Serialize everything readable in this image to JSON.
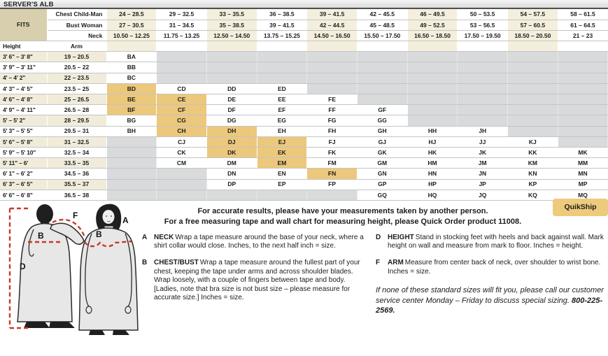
{
  "title": "SERVER'S ALB",
  "colors": {
    "highlight": "#ecc87c",
    "cream_column": "#f4efdd",
    "fits_khaki": "#d8cfae",
    "empty_gray": "#d9dadc",
    "quikship_bg": "#eeca7c",
    "accent_red": "#c9392b"
  },
  "table": {
    "fits_label": "FITS",
    "height_label": "Height",
    "arm_label": "Arm",
    "fit_rows": [
      {
        "label": "Chest Child-Man",
        "values": [
          "24 – 28.5",
          "29 – 32.5",
          "33 – 35.5",
          "36 – 38.5",
          "39 – 41.5",
          "42 – 45.5",
          "46 – 49.5",
          "50 – 53.5",
          "54 – 57.5",
          "58 – 61.5"
        ]
      },
      {
        "label": "Bust Woman",
        "values": [
          "27 – 30.5",
          "31 – 34.5",
          "35 – 38.5",
          "39 – 41.5",
          "42 – 44.5",
          "45 – 48.5",
          "49 – 52.5",
          "53 – 56.5",
          "57 – 60.5",
          "61 – 64.5"
        ]
      },
      {
        "label": "Neck",
        "values": [
          "10.50 – 12.25",
          "11.75 – 13.25",
          "12.50 – 14.50",
          "13.75 – 15.25",
          "14.50 – 16.50",
          "15.50 – 17.50",
          "16.50 – 18.50",
          "17.50 – 19.50",
          "18.50 – 20.50",
          "21 – 23"
        ]
      }
    ],
    "size_rows": [
      {
        "height": "3' 6\" – 3' 8\"",
        "arm": "19 – 20.5",
        "codes": [
          "BA",
          null,
          null,
          null,
          null,
          null,
          null,
          null,
          null,
          null
        ]
      },
      {
        "height": "3' 9\" – 3' 11\"",
        "arm": "20.5 – 22",
        "codes": [
          "BB",
          null,
          null,
          null,
          null,
          null,
          null,
          null,
          null,
          null
        ]
      },
      {
        "height": "4' – 4' 2\"",
        "arm": "22 – 23.5",
        "codes": [
          "BC",
          null,
          null,
          null,
          null,
          null,
          null,
          null,
          null,
          null
        ]
      },
      {
        "height": "4' 3\" – 4' 5\"",
        "arm": "23.5 – 25",
        "codes": [
          "BD",
          "CD",
          "DD",
          "ED",
          null,
          null,
          null,
          null,
          null,
          null
        ]
      },
      {
        "height": "4' 6\" – 4' 8\"",
        "arm": "25 – 26.5",
        "codes": [
          "BE",
          "CE",
          "DE",
          "EE",
          "FE",
          null,
          null,
          null,
          null,
          null
        ]
      },
      {
        "height": "4' 9\" – 4' 11\"",
        "arm": "26.5 – 28",
        "codes": [
          "BF",
          "CF",
          "DF",
          "EF",
          "FF",
          "GF",
          null,
          null,
          null,
          null
        ]
      },
      {
        "height": "5' – 5' 2\"",
        "arm": "28 – 29.5",
        "codes": [
          "BG",
          "CG",
          "DG",
          "EG",
          "FG",
          "GG",
          null,
          null,
          null,
          null
        ]
      },
      {
        "height": "5' 3\" – 5' 5\"",
        "arm": "29.5 – 31",
        "codes": [
          "BH",
          "CH",
          "DH",
          "EH",
          "FH",
          "GH",
          "HH",
          "JH",
          null,
          null
        ]
      },
      {
        "height": "5' 6\" – 5' 8\"",
        "arm": "31 – 32.5",
        "codes": [
          null,
          "CJ",
          "DJ",
          "EJ",
          "FJ",
          "GJ",
          "HJ",
          "JJ",
          "KJ",
          null
        ]
      },
      {
        "height": "5' 9\" – 5' 10\"",
        "arm": "32.5 – 34",
        "codes": [
          null,
          "CK",
          "DK",
          "EK",
          "FK",
          "GK",
          "HK",
          "JK",
          "KK",
          "MK"
        ]
      },
      {
        "height": "5' 11\" – 6'",
        "arm": "33.5 – 35",
        "codes": [
          null,
          "CM",
          "DM",
          "EM",
          "FM",
          "GM",
          "HM",
          "JM",
          "KM",
          "MM"
        ]
      },
      {
        "height": "6' 1\" – 6' 2\"",
        "arm": "34.5 – 36",
        "codes": [
          null,
          null,
          "DN",
          "EN",
          "FN",
          "GN",
          "HN",
          "JN",
          "KN",
          "MN"
        ]
      },
      {
        "height": "6' 3\" – 6' 5\"",
        "arm": "35.5 – 37",
        "codes": [
          null,
          null,
          "DP",
          "EP",
          "FP",
          "GP",
          "HP",
          "JP",
          "KP",
          "MP"
        ]
      },
      {
        "height": "6' 6\" – 6' 8\"",
        "arm": "36.5 – 38",
        "codes": [
          null,
          null,
          null,
          null,
          null,
          "GQ",
          "HQ",
          "JQ",
          "KQ",
          "MQ"
        ]
      }
    ],
    "highlighted_codes": [
      "BD",
      "BE",
      "CE",
      "BF",
      "CF",
      "CG",
      "CH",
      "DH",
      "DJ",
      "EJ",
      "DK",
      "EK",
      "EM",
      "FN"
    ]
  },
  "quikship_label": "QuikShip",
  "intro": {
    "line1": "For accurate results, please have your measurements taken by another person.",
    "line2": "For a free measuring tape and wall chart for measuring height, please Quick Order product 11008."
  },
  "definitions": {
    "left": [
      {
        "letter": "A",
        "term": "NECK",
        "text": "Wrap a tape measure around the base of your neck, where a shirt collar would close. Inches, to the next half inch = size."
      },
      {
        "letter": "B",
        "term": "CHEST/BUST",
        "text": "Wrap a tape measure around the fullest part of your chest, keeping the tape under arms and across shoulder blades. Wrap loosely, with a couple of fingers between tape and body. [Ladies, note that bra size is not bust size – please measure for accurate size.] Inches = size."
      }
    ],
    "right": [
      {
        "letter": "D",
        "term": "HEIGHT",
        "text": "Stand in stocking feet with heels and back against wall. Mark height on wall and measure from mark to floor. Inches = height."
      },
      {
        "letter": "F",
        "term": "ARM",
        "text": "Measure from center back of neck, over shoulder to wrist bone. Inches = size."
      }
    ]
  },
  "special_note": {
    "text": "If none of these standard sizes will fit you, please call our customer service center Monday – Friday to discuss special sizing. ",
    "phone": "800-225-2569."
  },
  "figure": {
    "label_a": "A",
    "label_b": "B",
    "label_d": "D",
    "label_f": "F"
  }
}
